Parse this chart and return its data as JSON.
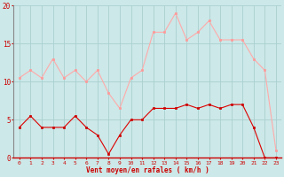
{
  "x": [
    0,
    1,
    2,
    3,
    4,
    5,
    6,
    7,
    8,
    9,
    10,
    11,
    12,
    13,
    14,
    15,
    16,
    17,
    18,
    19,
    20,
    21,
    22,
    23
  ],
  "wind_avg": [
    4,
    5.5,
    4,
    4,
    4,
    5.5,
    4,
    3,
    0.5,
    3,
    5,
    5,
    6.5,
    6.5,
    6.5,
    7,
    6.5,
    7,
    6.5,
    7,
    7,
    4,
    0,
    0
  ],
  "wind_gust": [
    10.5,
    11.5,
    10.5,
    13,
    10.5,
    11.5,
    10,
    11.5,
    8.5,
    6.5,
    10.5,
    11.5,
    16.5,
    16.5,
    19,
    15.5,
    16.5,
    18,
    15.5,
    15.5,
    15.5,
    13,
    11.5,
    1
  ],
  "bg_color": "#cce8e8",
  "grid_color": "#aacfcf",
  "line_color_avg": "#dd0000",
  "line_color_gust": "#ffaaaa",
  "marker_color_avg": "#cc0000",
  "marker_color_gust": "#ff9999",
  "xlabel": "Vent moyen/en rafales ( km/h )",
  "xlabel_color": "#cc0000",
  "tick_color": "#cc0000",
  "spine_color": "#888888",
  "ylim": [
    0,
    20
  ],
  "yticks": [
    0,
    5,
    10,
    15,
    20
  ],
  "xlim": [
    -0.5,
    23.5
  ]
}
